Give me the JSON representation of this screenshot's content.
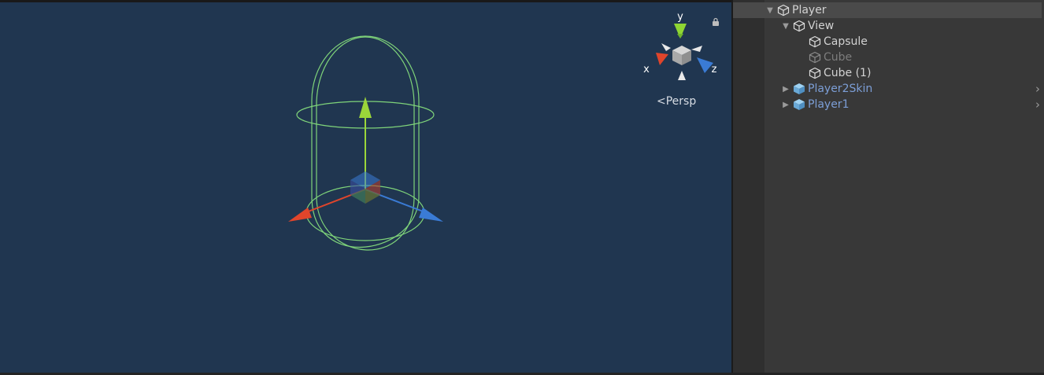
{
  "scene_view": {
    "projection_label": "Persp",
    "gizmo_axes": {
      "x": "x",
      "y": "y",
      "z": "z"
    },
    "colors": {
      "background": "#203650",
      "collider": "#7fd47a",
      "axis_x": "#e0452b",
      "axis_y": "#9bd63a",
      "axis_z": "#3a7bd5"
    }
  },
  "hierarchy": {
    "items": [
      {
        "label": "Player",
        "depth": 0,
        "expanded": true,
        "selected": true,
        "kind": "object",
        "state": "active",
        "has_children": true
      },
      {
        "label": "View",
        "depth": 1,
        "expanded": true,
        "selected": false,
        "kind": "object",
        "state": "active",
        "has_children": true
      },
      {
        "label": "Capsule",
        "depth": 2,
        "expanded": false,
        "selected": false,
        "kind": "object",
        "state": "active",
        "has_children": false
      },
      {
        "label": "Cube",
        "depth": 2,
        "expanded": false,
        "selected": false,
        "kind": "object",
        "state": "inactive",
        "has_children": false
      },
      {
        "label": "Cube (1)",
        "depth": 2,
        "expanded": false,
        "selected": false,
        "kind": "object",
        "state": "active",
        "has_children": false
      },
      {
        "label": "Player2Skin",
        "depth": 1,
        "expanded": false,
        "selected": false,
        "kind": "prefab",
        "state": "active",
        "has_children": true
      },
      {
        "label": "Player1",
        "depth": 1,
        "expanded": false,
        "selected": false,
        "kind": "prefab",
        "state": "active",
        "has_children": true
      }
    ]
  }
}
